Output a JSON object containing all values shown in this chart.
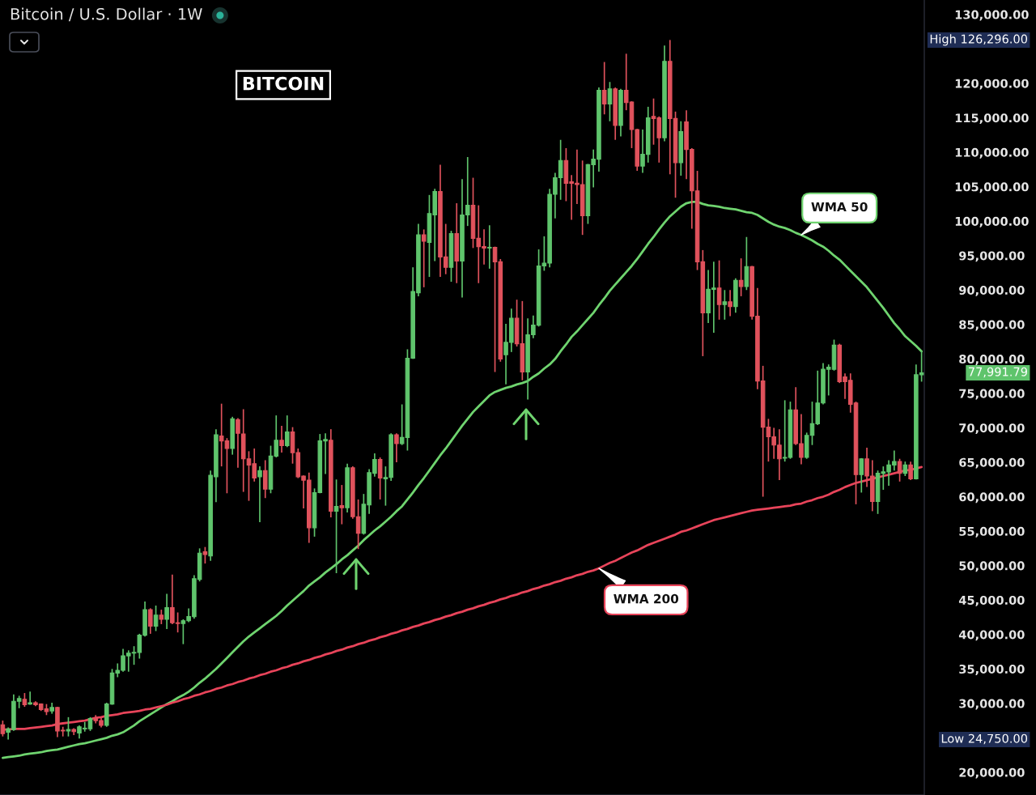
{
  "chart_data": {
    "type": "candlestick",
    "title": "Bitcoin / U.S. Dollar · 1W",
    "annotations": [
      "BITCOIN",
      "High 126,296.00",
      "77,991.79",
      "Low 24,750.00"
    ],
    "categories": [
      null,
      null,
      null,
      null,
      null,
      null,
      null,
      null,
      null,
      null,
      null,
      null,
      null,
      null,
      null,
      null,
      null,
      null,
      null,
      null,
      null,
      null,
      null,
      null,
      null,
      null,
      null,
      null,
      null,
      null,
      null,
      null,
      null,
      null,
      null,
      null,
      null,
      null,
      null,
      null,
      null,
      null,
      null,
      null,
      null,
      null,
      null,
      null,
      null,
      null,
      null,
      null,
      null,
      null,
      null,
      null,
      null,
      null,
      null,
      null,
      null,
      null,
      null,
      null,
      null,
      null,
      null,
      null,
      null,
      null,
      null,
      null,
      null,
      null,
      null,
      null,
      null,
      null,
      null,
      null,
      null,
      null,
      null,
      null,
      null,
      null,
      null,
      null,
      null,
      null,
      null,
      null,
      null,
      null,
      null,
      null,
      null,
      null,
      null,
      null,
      null,
      null,
      null,
      null,
      null,
      null,
      null,
      null,
      null,
      null,
      null,
      null,
      null,
      null,
      null,
      null,
      null,
      null,
      null,
      null,
      null,
      null,
      null,
      null,
      null,
      null,
      null,
      null,
      null,
      null,
      null,
      null,
      null,
      null,
      null,
      null,
      null,
      null,
      null,
      null,
      null,
      null,
      null,
      null,
      null,
      null,
      null,
      null,
      null,
      null,
      null,
      null,
      null,
      null,
      null,
      null,
      null,
      null,
      null,
      null,
      null,
      null,
      null,
      null,
      null,
      null,
      null,
      null,
      null
    ],
    "ohlc": [
      [
        26900,
        27500,
        25200,
        25600
      ],
      [
        25800,
        26500,
        24750,
        26300
      ],
      [
        26200,
        31300,
        26000,
        30300
      ],
      [
        30300,
        31100,
        29300,
        30700
      ],
      [
        30600,
        31500,
        29500,
        29800
      ],
      [
        29900,
        31700,
        29800,
        30100
      ],
      [
        30100,
        30300,
        29600,
        29800
      ],
      [
        29900,
        30000,
        28900,
        29100
      ],
      [
        29200,
        29900,
        28300,
        28800
      ],
      [
        28900,
        30100,
        28500,
        29400
      ],
      [
        29400,
        29500,
        25100,
        26000
      ],
      [
        26100,
        26600,
        25200,
        26000
      ],
      [
        26000,
        28000,
        25200,
        26200
      ],
      [
        26200,
        26400,
        25400,
        25900
      ],
      [
        25700,
        26800,
        24900,
        26600
      ],
      [
        26300,
        27300,
        25900,
        26400
      ],
      [
        26300,
        28000,
        26000,
        27800
      ],
      [
        27800,
        28300,
        27100,
        27500
      ],
      [
        27500,
        27900,
        26500,
        26800
      ],
      [
        26800,
        30100,
        26600,
        29900
      ],
      [
        29900,
        35000,
        29800,
        34400
      ],
      [
        34400,
        35800,
        33800,
        34800
      ],
      [
        34800,
        37900,
        34600,
        36900
      ],
      [
        36900,
        37700,
        34600,
        37300
      ],
      [
        37300,
        38300,
        35600,
        37400
      ],
      [
        37400,
        40100,
        36500,
        39900
      ],
      [
        39900,
        44800,
        39700,
        43600
      ],
      [
        43600,
        43800,
        40100,
        41200
      ],
      [
        41200,
        44200,
        40500,
        42800
      ],
      [
        42800,
        43600,
        41500,
        42200
      ],
      [
        42200,
        45900,
        40800,
        43900
      ],
      [
        43900,
        48700,
        41500,
        41700
      ],
      [
        41700,
        43200,
        40300,
        41600
      ],
      [
        41600,
        42200,
        38600,
        42000
      ],
      [
        42000,
        43800,
        41800,
        42600
      ],
      [
        42600,
        48600,
        42300,
        48100
      ],
      [
        48000,
        52500,
        47700,
        51800
      ],
      [
        52000,
        52700,
        50300,
        51600
      ],
      [
        51400,
        63800,
        50700,
        63100
      ],
      [
        62900,
        69800,
        59200,
        69000
      ],
      [
        68800,
        73500,
        64400,
        68100
      ],
      [
        68100,
        68500,
        60500,
        67000
      ],
      [
        67000,
        71600,
        66100,
        71300
      ],
      [
        71200,
        71400,
        64200,
        69200
      ],
      [
        69100,
        72700,
        60700,
        65500
      ],
      [
        65500,
        66600,
        59400,
        64600
      ],
      [
        64800,
        67000,
        62200,
        62700
      ],
      [
        62900,
        64400,
        56300,
        63800
      ],
      [
        63800,
        65300,
        59800,
        61100
      ],
      [
        61100,
        67400,
        60500,
        65900
      ],
      [
        65900,
        71800,
        65700,
        68200
      ],
      [
        68200,
        70300,
        66400,
        67400
      ],
      [
        67400,
        71800,
        67200,
        69400
      ],
      [
        69400,
        70100,
        64800,
        66400
      ],
      [
        66400,
        67000,
        62700,
        62900
      ],
      [
        63000,
        63100,
        58300,
        62400
      ],
      [
        62400,
        63500,
        53300,
        55500
      ],
      [
        55500,
        61200,
        54200,
        60600
      ],
      [
        60600,
        69100,
        60500,
        68100
      ],
      [
        68100,
        69200,
        63300,
        68300
      ],
      [
        68200,
        69800,
        57000,
        57900
      ],
      [
        57900,
        62500,
        48900,
        58600
      ],
      [
        58700,
        61700,
        56000,
        58400
      ],
      [
        58400,
        64800,
        57700,
        64200
      ],
      [
        64200,
        64400,
        56800,
        57100
      ],
      [
        57100,
        59600,
        52400,
        54700
      ],
      [
        54700,
        60400,
        54500,
        58900
      ],
      [
        58800,
        64000,
        57500,
        63500
      ],
      [
        63400,
        66300,
        62900,
        65400
      ],
      [
        65400,
        65700,
        59600,
        62700
      ],
      [
        62600,
        64400,
        58700,
        62800
      ],
      [
        62800,
        69200,
        62300,
        69000
      ],
      [
        69000,
        69200,
        65000,
        67700
      ],
      [
        67700,
        73400,
        67500,
        68600
      ],
      [
        68600,
        81400,
        66700,
        80100
      ],
      [
        80100,
        93300,
        80000,
        89800
      ],
      [
        89600,
        99600,
        89100,
        98000
      ],
      [
        98000,
        98800,
        90400,
        97100
      ],
      [
        96900,
        103800,
        91900,
        101100
      ],
      [
        100900,
        104700,
        94200,
        104300
      ],
      [
        104300,
        108200,
        91900,
        94800
      ],
      [
        94800,
        99600,
        92300,
        93300
      ],
      [
        93300,
        98600,
        91200,
        98200
      ],
      [
        98200,
        102600,
        91000,
        94200
      ],
      [
        94200,
        106100,
        88900,
        100900
      ],
      [
        100900,
        109300,
        99300,
        102300
      ],
      [
        102300,
        106300,
        96100,
        97500
      ],
      [
        97500,
        102300,
        91000,
        96300
      ],
      [
        96300,
        98800,
        93700,
        96100
      ],
      [
        96100,
        99400,
        93100,
        96200
      ],
      [
        96200,
        96300,
        78100,
        94100
      ],
      [
        94100,
        94500,
        79600,
        80000
      ],
      [
        80600,
        85100,
        76300,
        82400
      ],
      [
        82400,
        87300,
        81000,
        85900
      ],
      [
        85900,
        88600,
        81800,
        82200
      ],
      [
        82200,
        88400,
        76900,
        78100
      ],
      [
        78100,
        85900,
        74100,
        83500
      ],
      [
        83500,
        86300,
        83000,
        84900
      ],
      [
        84900,
        95900,
        84700,
        93500
      ],
      [
        93500,
        97800,
        92800,
        93900
      ],
      [
        93900,
        104700,
        93300,
        103900
      ],
      [
        103900,
        107000,
        100400,
        106300
      ],
      [
        106300,
        111800,
        103100,
        108800
      ],
      [
        108800,
        110600,
        102900,
        105500
      ],
      [
        105700,
        106700,
        100200,
        105500
      ],
      [
        105500,
        110400,
        102500,
        105300
      ],
      [
        105300,
        108800,
        98000,
        100800
      ],
      [
        100800,
        108300,
        99600,
        108200
      ],
      [
        108200,
        110400,
        104900,
        109000
      ],
      [
        109000,
        119400,
        107200,
        119000
      ],
      [
        119000,
        123100,
        115500,
        117000
      ],
      [
        117000,
        120200,
        114500,
        119200
      ],
      [
        119200,
        119400,
        111800,
        113900
      ],
      [
        113900,
        119200,
        112300,
        119000
      ],
      [
        119000,
        124300,
        116100,
        117200
      ],
      [
        117300,
        117400,
        110600,
        113300
      ],
      [
        113300,
        113400,
        107300,
        108000
      ],
      [
        108000,
        113300,
        107000,
        109700
      ],
      [
        109700,
        116600,
        108500,
        115000
      ],
      [
        115200,
        117800,
        111100,
        114900
      ],
      [
        115000,
        115200,
        108500,
        112100
      ],
      [
        112100,
        125500,
        111600,
        123200
      ],
      [
        123200,
        126296,
        106800,
        114900
      ],
      [
        114900,
        115900,
        103400,
        108500
      ],
      [
        108500,
        114500,
        106600,
        113000
      ],
      [
        114400,
        116100,
        106100,
        110400
      ],
      [
        110400,
        110600,
        98900,
        104400
      ],
      [
        104400,
        107300,
        92900,
        94100
      ],
      [
        94100,
        95800,
        80400,
        86700
      ],
      [
        86700,
        92900,
        85200,
        90100
      ],
      [
        90100,
        94100,
        83800,
        90300
      ],
      [
        90300,
        94300,
        85700,
        87900
      ],
      [
        87900,
        90000,
        85700,
        88300
      ],
      [
        88300,
        90000,
        86200,
        87600
      ],
      [
        87600,
        91700,
        86700,
        91400
      ],
      [
        91400,
        94600,
        89100,
        90500
      ],
      [
        90500,
        97700,
        90000,
        93400
      ],
      [
        93400,
        93500,
        85700,
        86200
      ],
      [
        86200,
        90300,
        75600,
        76800
      ],
      [
        76800,
        79000,
        60000,
        70100
      ],
      [
        70100,
        71300,
        65100,
        68700
      ],
      [
        68700,
        70000,
        65500,
        67500
      ],
      [
        67500,
        69800,
        62400,
        65500
      ],
      [
        65600,
        74000,
        65100,
        65700
      ],
      [
        65700,
        73800,
        65500,
        72600
      ],
      [
        72600,
        75900,
        67500,
        67700
      ],
      [
        67700,
        72000,
        64700,
        65700
      ],
      [
        65700,
        69300,
        65500,
        68900
      ],
      [
        68900,
        73800,
        67500,
        70600
      ],
      [
        70600,
        78300,
        70400,
        73600
      ],
      [
        73600,
        79400,
        73400,
        78500
      ],
      [
        78500,
        79200,
        74700,
        78800
      ],
      [
        78500,
        82800,
        78300,
        82000
      ],
      [
        82000,
        82200,
        76500,
        76700
      ],
      [
        77400,
        77900,
        74200,
        76700
      ],
      [
        76900,
        77900,
        72200,
        73400
      ],
      [
        73600,
        73800,
        58900,
        63200
      ],
      [
        63200,
        65600,
        60600,
        65500
      ],
      [
        65500,
        67100,
        61400,
        63000
      ],
      [
        63000,
        65300,
        57900,
        59300
      ],
      [
        59300,
        63800,
        57500,
        63400
      ],
      [
        63400,
        64400,
        61000,
        63600
      ],
      [
        63600,
        65300,
        61600,
        64600
      ],
      [
        64600,
        66700,
        63800,
        65100
      ],
      [
        65100,
        65500,
        62200,
        63400
      ],
      [
        63400,
        65100,
        63000,
        64600
      ],
      [
        64600,
        65100,
        62400,
        62600
      ],
      [
        62600,
        79200,
        62500,
        77700
      ],
      [
        77700,
        81200,
        76700,
        77991.79
      ]
    ],
    "colors": [
      "#e0525c",
      "#5fc46c",
      "#5fc46c",
      "#5fc46c",
      "#e0525c",
      "#5fc46c",
      "#e0525c",
      "#e0525c",
      "#e0525c",
      "#5fc46c",
      "#e0525c",
      "#e0525c",
      "#5fc46c",
      "#e0525c",
      "#5fc46c",
      "#5fc46c",
      "#5fc46c",
      "#e0525c",
      "#e0525c",
      "#5fc46c",
      "#5fc46c",
      "#5fc46c",
      "#5fc46c",
      "#5fc46c",
      "#5fc46c",
      "#5fc46c",
      "#5fc46c",
      "#e0525c",
      "#5fc46c",
      "#e0525c",
      "#5fc46c",
      "#e0525c",
      "#e0525c",
      "#5fc46c",
      "#5fc46c",
      "#5fc46c",
      "#5fc46c",
      "#e0525c",
      "#5fc46c",
      "#5fc46c",
      "#e0525c",
      "#e0525c",
      "#5fc46c",
      "#e0525c",
      "#e0525c",
      "#e0525c",
      "#e0525c",
      "#5fc46c",
      "#e0525c",
      "#5fc46c",
      "#5fc46c",
      "#e0525c",
      "#5fc46c",
      "#e0525c",
      "#e0525c",
      "#e0525c",
      "#e0525c",
      "#5fc46c",
      "#5fc46c",
      "#5fc46c",
      "#e0525c",
      "#5fc46c",
      "#e0525c",
      "#5fc46c",
      "#e0525c",
      "#e0525c",
      "#5fc46c",
      "#5fc46c",
      "#5fc46c",
      "#e0525c",
      "#5fc46c",
      "#5fc46c",
      "#e0525c",
      "#5fc46c",
      "#5fc46c",
      "#5fc46c",
      "#5fc46c",
      "#e0525c",
      "#5fc46c",
      "#5fc46c",
      "#e0525c",
      "#e0525c",
      "#5fc46c",
      "#e0525c",
      "#5fc46c",
      "#5fc46c",
      "#e0525c",
      "#e0525c",
      "#e0525c",
      "#5fc46c",
      "#e0525c",
      "#e0525c",
      "#5fc46c",
      "#5fc46c",
      "#e0525c",
      "#e0525c",
      "#5fc46c",
      "#5fc46c",
      "#5fc46c",
      "#5fc46c",
      "#5fc46c",
      "#5fc46c",
      "#5fc46c",
      "#e0525c",
      "#e0525c",
      "#e0525c",
      "#e0525c",
      "#5fc46c",
      "#5fc46c",
      "#5fc46c",
      "#e0525c",
      "#5fc46c",
      "#e0525c",
      "#5fc46c",
      "#e0525c",
      "#e0525c",
      "#e0525c",
      "#5fc46c",
      "#5fc46c",
      "#e0525c",
      "#e0525c",
      "#5fc46c",
      "#e0525c",
      "#e0525c",
      "#5fc46c",
      "#e0525c",
      "#e0525c",
      "#e0525c",
      "#e0525c",
      "#5fc46c",
      "#5fc46c",
      "#e0525c",
      "#5fc46c",
      "#e0525c",
      "#5fc46c",
      "#e0525c",
      "#5fc46c",
      "#e0525c",
      "#e0525c",
      "#e0525c",
      "#e0525c",
      "#e0525c",
      "#e0525c",
      "#5fc46c",
      "#5fc46c",
      "#e0525c",
      "#e0525c",
      "#5fc46c",
      "#5fc46c",
      "#5fc46c",
      "#5fc46c",
      "#5fc46c",
      "#5fc46c",
      "#e0525c",
      "#e0525c",
      "#e0525c",
      "#e0525c",
      "#5fc46c",
      "#e0525c",
      "#e0525c",
      "#5fc46c",
      "#5fc46c",
      "#5fc46c",
      "#5fc46c",
      "#e0525c",
      "#5fc46c",
      "#e0525c",
      "#5fc46c",
      "#5fc46c"
    ],
    "series": [
      {
        "type": "line",
        "name": "WMA 50",
        "color": "#6fd46f",
        "values": [
          22100,
          22200,
          22300,
          22400,
          22600,
          22700,
          22800,
          22900,
          23100,
          23200,
          23300,
          23500,
          23700,
          23900,
          24100,
          24200,
          24400,
          24600,
          24800,
          25000,
          25300,
          25500,
          25800,
          26300,
          26800,
          27400,
          27900,
          28400,
          28900,
          29400,
          29900,
          30300,
          30800,
          31200,
          31700,
          32300,
          33000,
          33600,
          34300,
          35000,
          35800,
          36600,
          37400,
          38200,
          39000,
          39700,
          40300,
          40900,
          41500,
          42100,
          42700,
          43400,
          44200,
          44900,
          45600,
          46300,
          47100,
          47700,
          48300,
          49000,
          49600,
          50200,
          50900,
          51500,
          52200,
          52900,
          53700,
          54400,
          55100,
          55700,
          56400,
          57100,
          57900,
          58600,
          59600,
          60600,
          61700,
          62700,
          63800,
          64900,
          66000,
          67000,
          68100,
          69200,
          70300,
          71300,
          72300,
          73100,
          73900,
          74700,
          75200,
          75500,
          75800,
          76000,
          76300,
          76500,
          76800,
          77400,
          77900,
          78600,
          79200,
          80000,
          81100,
          82100,
          83200,
          84000,
          84900,
          85800,
          86700,
          87800,
          88800,
          89900,
          90800,
          91700,
          92600,
          93500,
          94500,
          95600,
          96700,
          97700,
          98800,
          99800,
          100700,
          101400,
          102100,
          102600,
          102800,
          102800,
          102500,
          102300,
          102200,
          102100,
          101900,
          101800,
          101700,
          101500,
          101300,
          101200,
          100900,
          100400,
          99900,
          99500,
          99200,
          99000,
          98700,
          98300,
          98000,
          97600,
          97200,
          96700,
          96300,
          95700,
          95000,
          94400,
          93600,
          92800,
          92000,
          91200,
          90400,
          89400,
          88400,
          87400,
          86300,
          85200,
          84300,
          83300,
          82600,
          81900,
          81100
        ]
      },
      {
        "type": "line",
        "name": "WMA 200",
        "color": "#e8445a",
        "values": [
          26200,
          26200,
          26300,
          26300,
          26300,
          26400,
          26500,
          26600,
          26700,
          26800,
          27000,
          27100,
          27200,
          27300,
          27400,
          27500,
          27700,
          27900,
          28000,
          28200,
          28300,
          28400,
          28600,
          28700,
          28800,
          28900,
          29100,
          29200,
          29400,
          29600,
          29800,
          30100,
          30300,
          30600,
          30800,
          31100,
          31300,
          31600,
          31800,
          32100,
          32300,
          32600,
          32800,
          33100,
          33300,
          33600,
          33800,
          34100,
          34300,
          34600,
          34800,
          35100,
          35300,
          35600,
          35800,
          36100,
          36300,
          36600,
          36800,
          37100,
          37300,
          37600,
          37800,
          38100,
          38300,
          38600,
          38800,
          39100,
          39300,
          39600,
          39800,
          40100,
          40300,
          40600,
          40800,
          41100,
          41300,
          41600,
          41800,
          42100,
          42300,
          42600,
          42800,
          43100,
          43300,
          43600,
          43800,
          44100,
          44300,
          44600,
          44800,
          45100,
          45300,
          45600,
          45800,
          46100,
          46300,
          46600,
          46800,
          47100,
          47300,
          47600,
          47800,
          48100,
          48300,
          48600,
          48800,
          49100,
          49300,
          49600,
          50000,
          50400,
          50700,
          51100,
          51500,
          51900,
          52200,
          52600,
          53000,
          53300,
          53600,
          53900,
          54200,
          54500,
          54900,
          55100,
          55400,
          55700,
          56000,
          56300,
          56600,
          56800,
          57000,
          57200,
          57400,
          57600,
          57800,
          58000,
          58100,
          58200,
          58300,
          58400,
          58500,
          58600,
          58700,
          58900,
          59000,
          59300,
          59500,
          59800,
          60000,
          60300,
          60700,
          61000,
          61400,
          61700,
          62000,
          62200,
          62400,
          62600,
          62800,
          63000,
          63200,
          63400,
          63600,
          63800,
          63900,
          64100,
          64300
        ]
      }
    ],
    "ylim": [
      16700,
      132100
    ],
    "yticks": [
      {
        "value": 20000,
        "label": "20,000.00"
      },
      {
        "value": 30000,
        "label": "30,000.00"
      },
      {
        "value": 35000,
        "label": "35,000.00"
      },
      {
        "value": 40000,
        "label": "40,000.00"
      },
      {
        "value": 45000,
        "label": "45,000.00"
      },
      {
        "value": 50000,
        "label": "50,000.00"
      },
      {
        "value": 55000,
        "label": "55,000.00"
      },
      {
        "value": 60000,
        "label": "60,000.00"
      },
      {
        "value": 65000,
        "label": "65,000.00"
      },
      {
        "value": 70000,
        "label": "70,000.00"
      },
      {
        "value": 75000,
        "label": "75,000.00"
      },
      {
        "value": 80000,
        "label": "80,000.00"
      },
      {
        "value": 85000,
        "label": "85,000.00"
      },
      {
        "value": 90000,
        "label": "90,000.00"
      },
      {
        "value": 95000,
        "label": "95,000.00"
      },
      {
        "value": 100000,
        "label": "100,000.00"
      },
      {
        "value": 105000,
        "label": "105,000.00"
      },
      {
        "value": 110000,
        "label": "110,000.00"
      },
      {
        "value": 115000,
        "label": "115,000.00"
      },
      {
        "value": 120000,
        "label": "120,000.00"
      },
      {
        "value": 130000,
        "label": "130,000.00"
      }
    ],
    "tick_labels": "y"
  }
}
